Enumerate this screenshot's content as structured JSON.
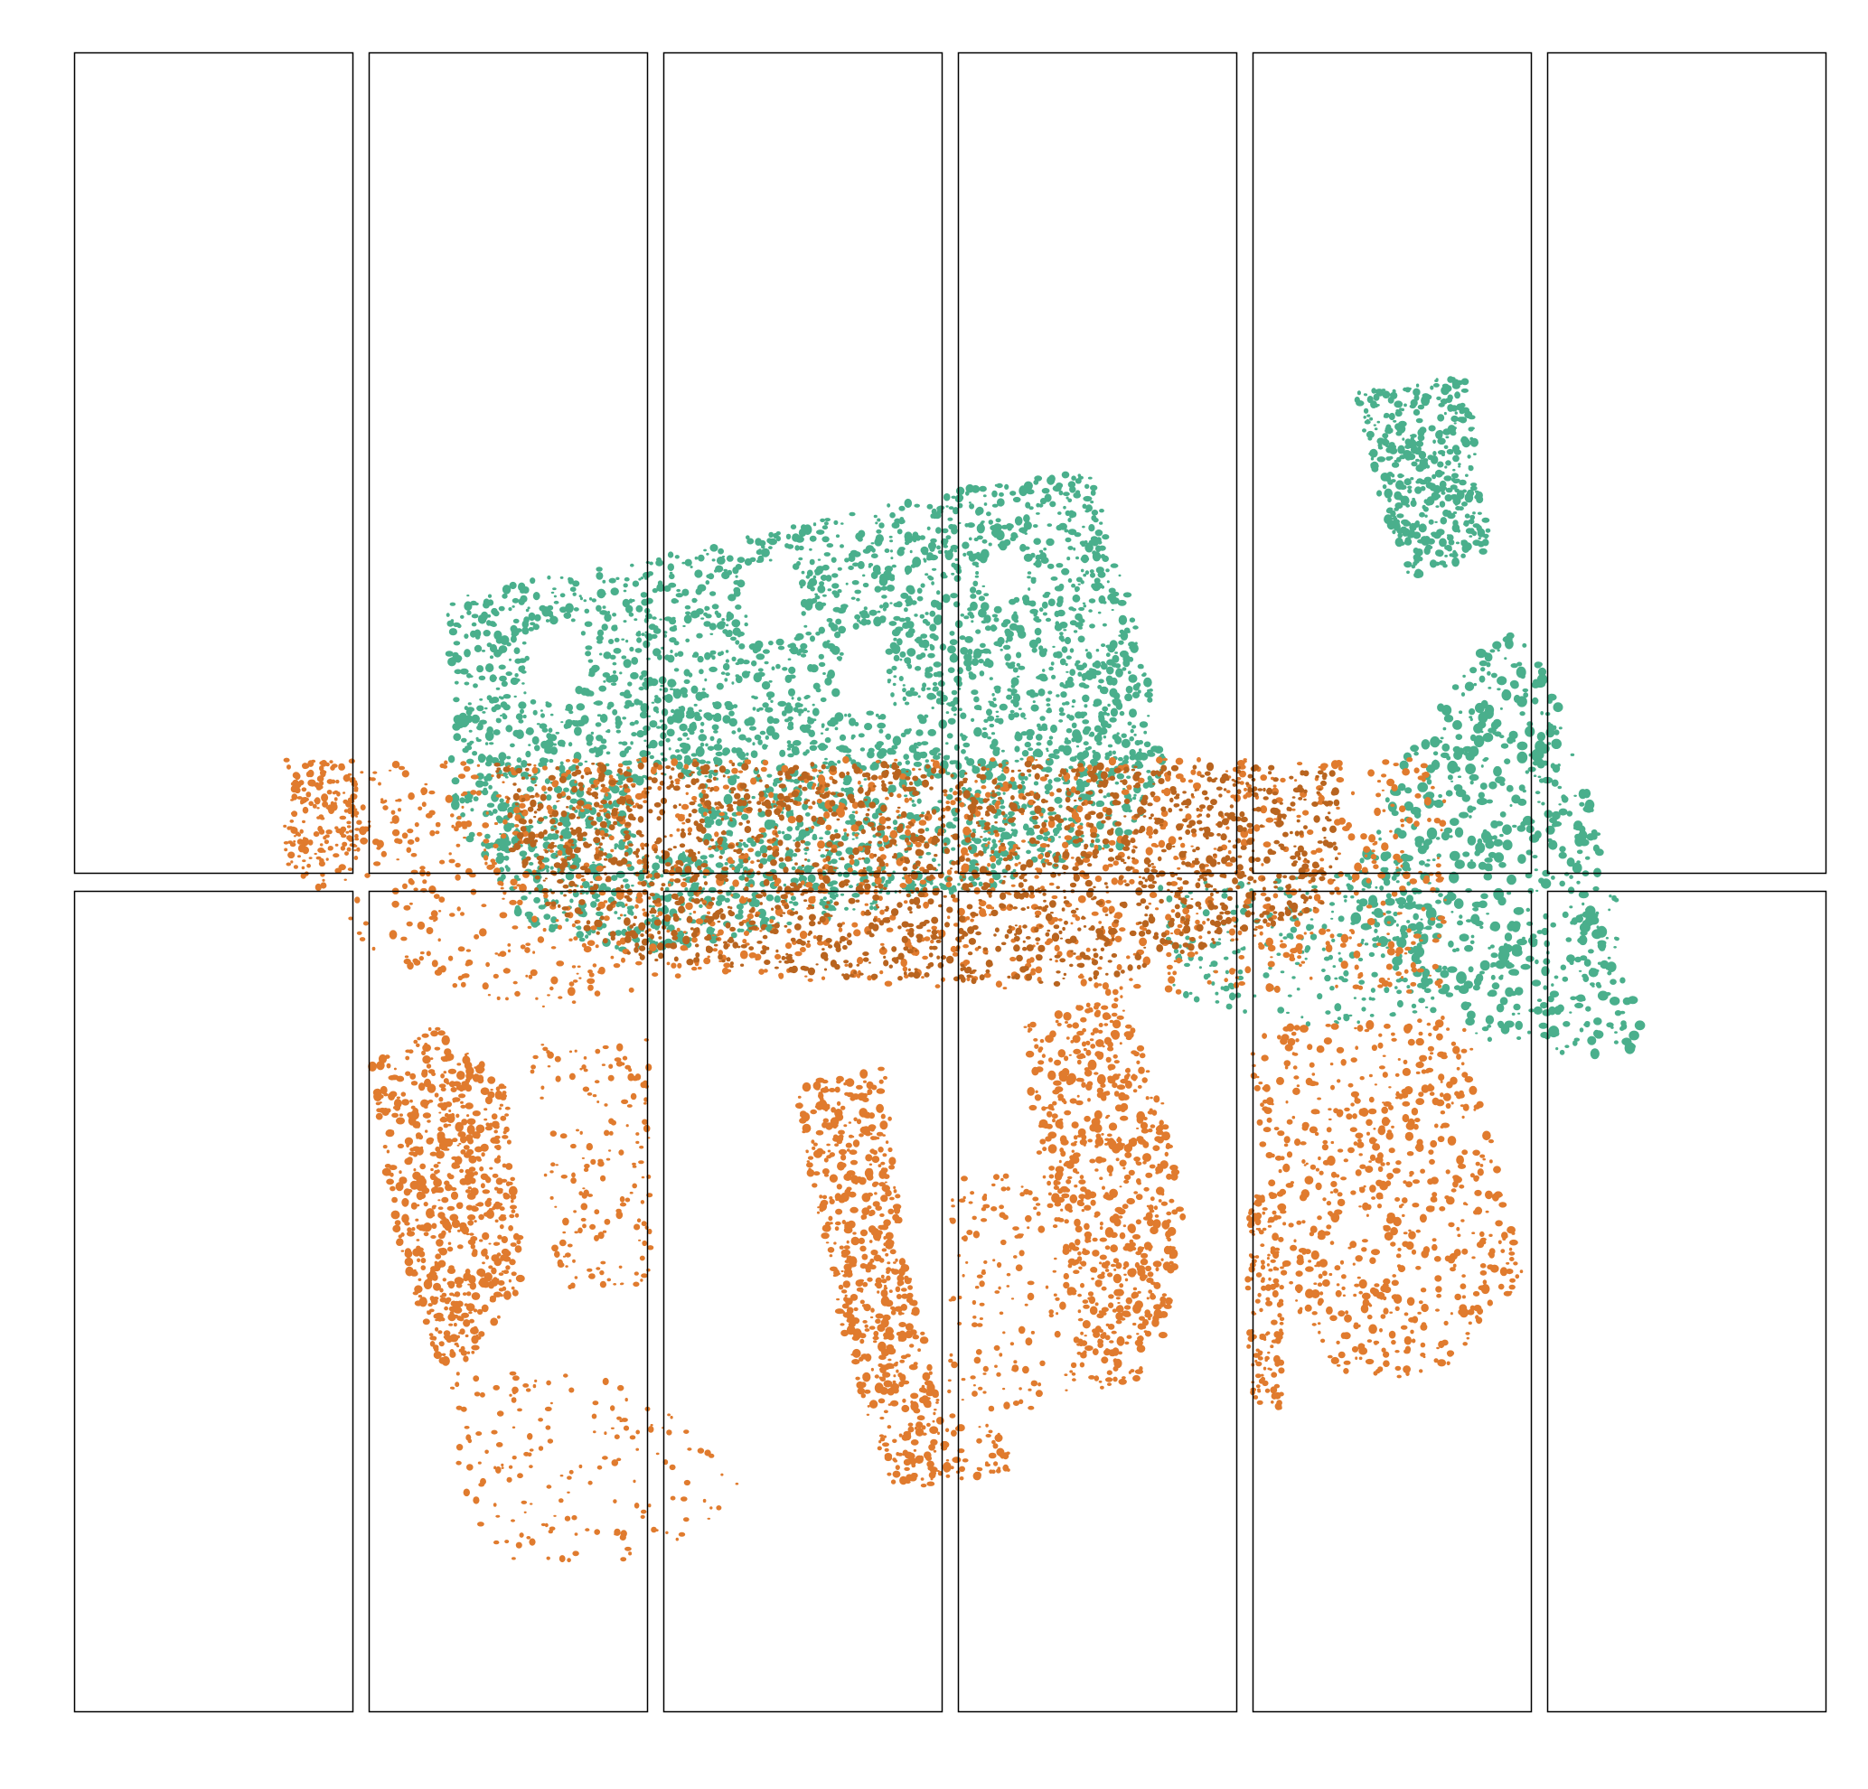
{
  "figure": {
    "description_type": "spatial-transcriptomics-cell-segmentation-tiling",
    "grid": {
      "rows": 2,
      "columns": 6
    },
    "tiles": [
      {
        "row": 1,
        "col": 1
      },
      {
        "row": 1,
        "col": 2
      },
      {
        "row": 1,
        "col": 3
      },
      {
        "row": 1,
        "col": 4
      },
      {
        "row": 1,
        "col": 5
      },
      {
        "row": 1,
        "col": 6
      },
      {
        "row": 2,
        "col": 1
      },
      {
        "row": 2,
        "col": 2
      },
      {
        "row": 2,
        "col": 3
      },
      {
        "row": 2,
        "col": 4
      },
      {
        "row": 2,
        "col": 5
      },
      {
        "row": 2,
        "col": 6
      }
    ],
    "sections": [
      {
        "name": "",
        "color": "#4aaf8c",
        "role": "upper-tissue-section"
      },
      {
        "name": "",
        "color": "#e07b2e",
        "role": "lower-tissue-section"
      }
    ],
    "overlap_color": "#b8641f",
    "tile_border_color": "#000000"
  }
}
